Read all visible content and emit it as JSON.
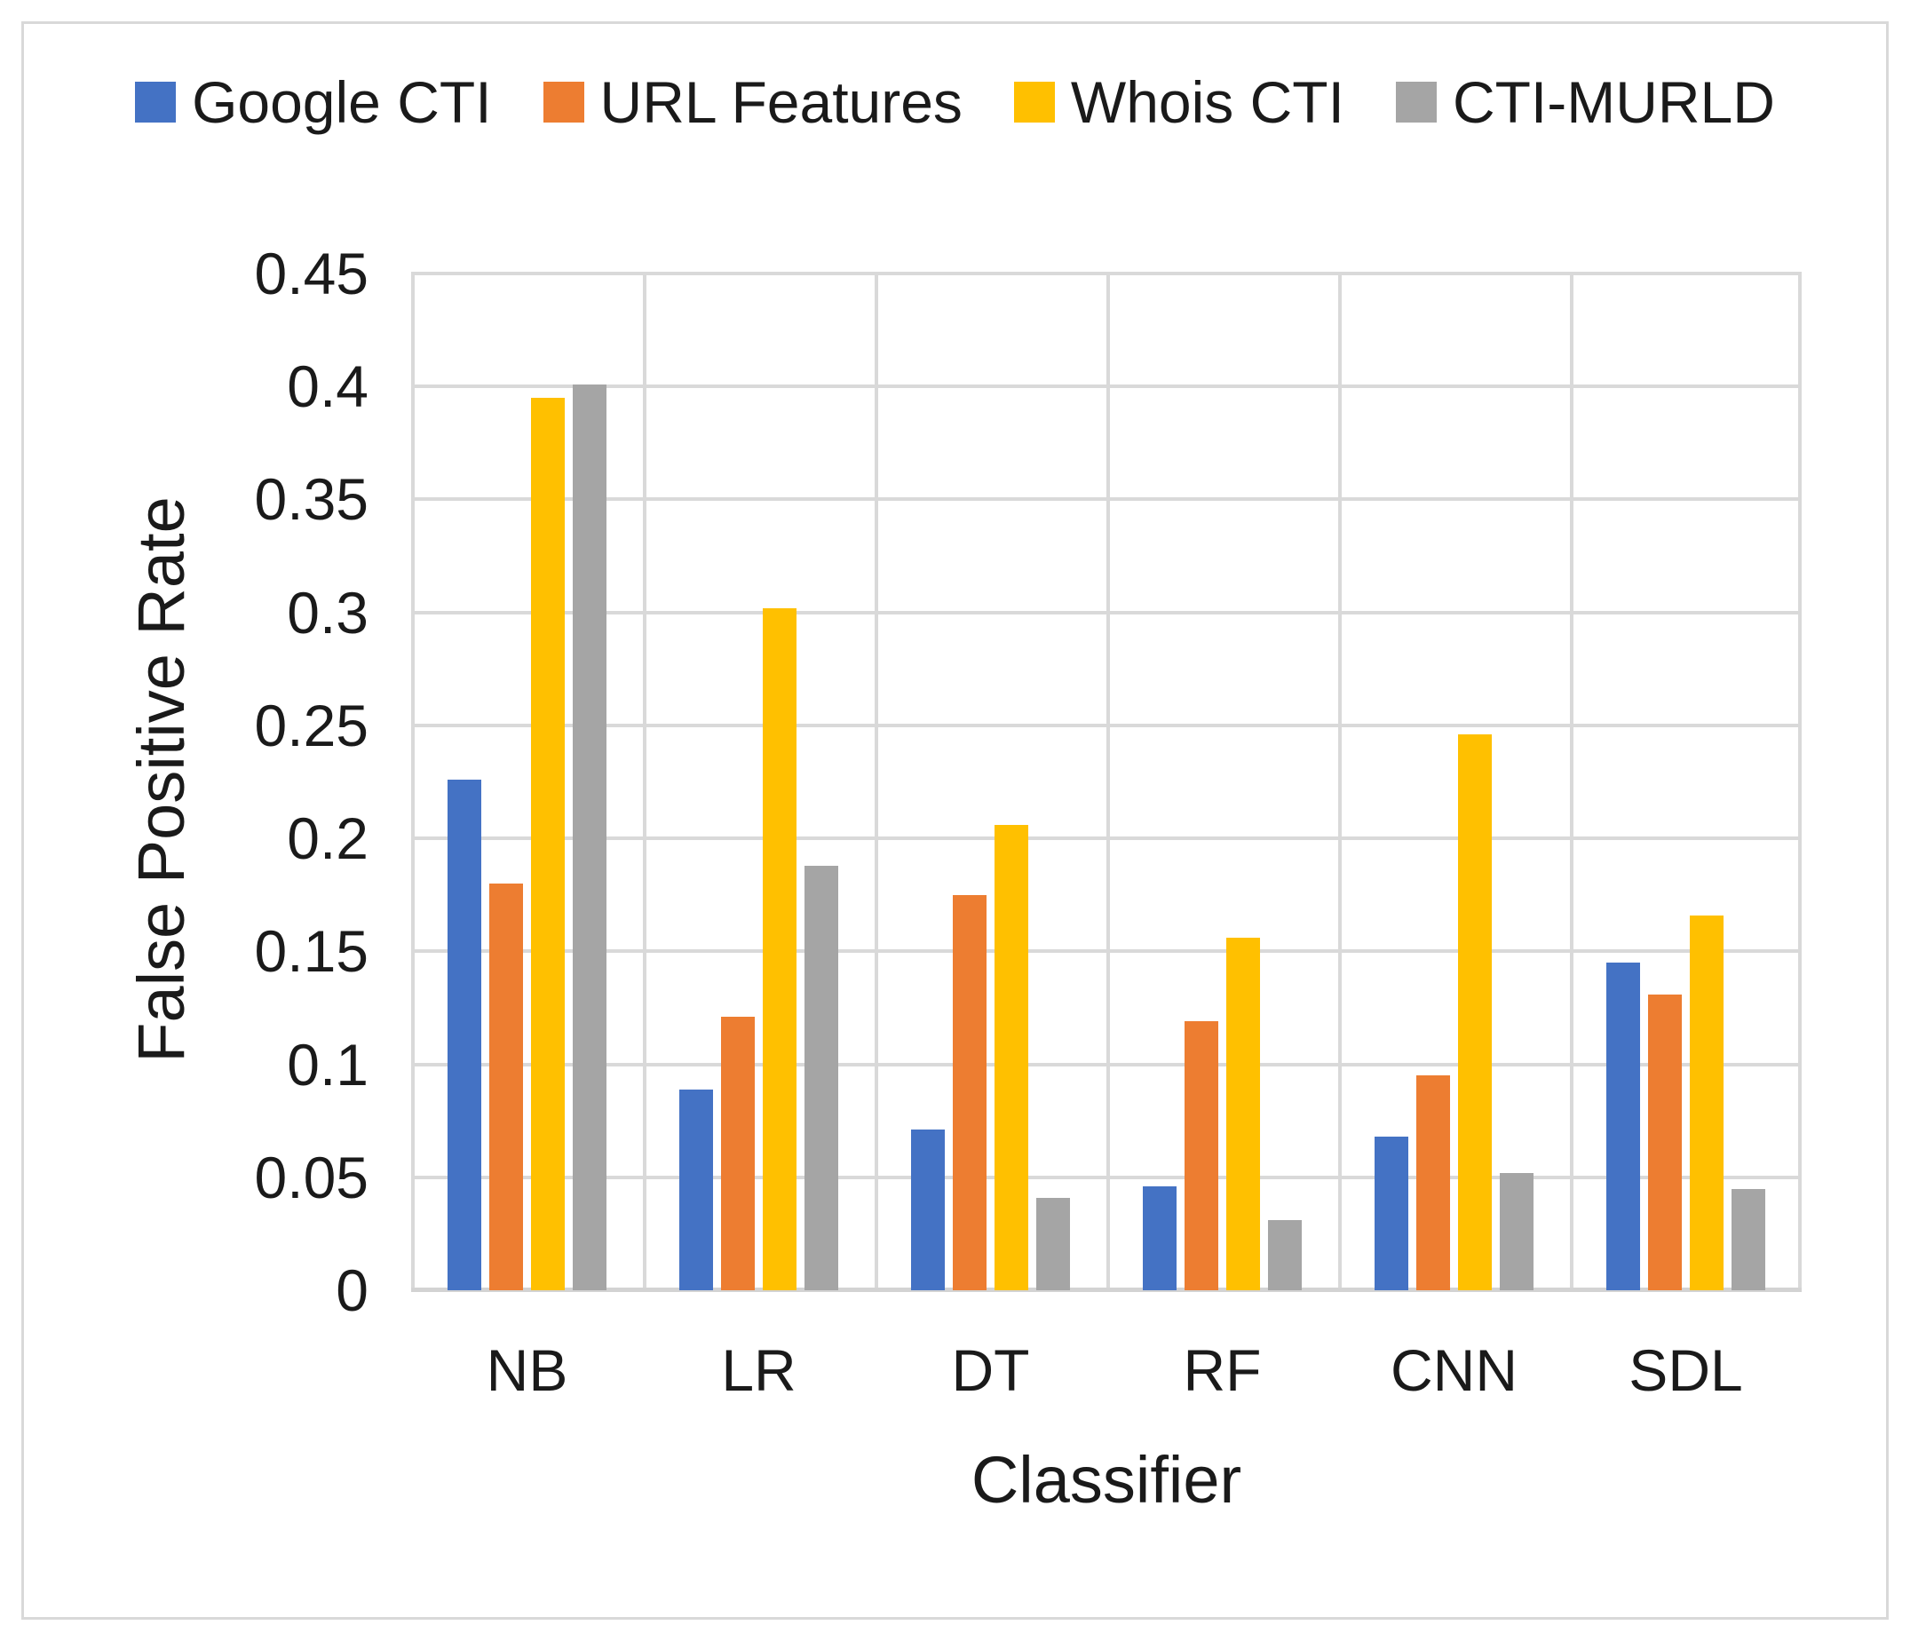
{
  "figure": {
    "background": "#ffffff",
    "border_color": "#d9d9d9",
    "gridline_color": "#d9d9d9",
    "text_color": "#1a1a1a"
  },
  "legend": {
    "position": "top",
    "items": [
      {
        "label": "Google CTI",
        "color": "#4472C4"
      },
      {
        "label": "URL Features",
        "color": "#ED7D31"
      },
      {
        "label": "Whois CTI",
        "color": "#FFC000"
      },
      {
        "label": "CTI-MURLD",
        "color": "#A5A5A5"
      }
    ]
  },
  "axes": {
    "y_tick_labels": [
      "0",
      "0.05",
      "0.1",
      "0.15",
      "0.2",
      "0.25",
      "0.3",
      "0.35",
      "0.4",
      "0.45"
    ],
    "y_tick_values": [
      0,
      0.05,
      0.1,
      0.15,
      0.2,
      0.25,
      0.3,
      0.35,
      0.4,
      0.45
    ]
  },
  "chart_data": {
    "type": "bar",
    "title": "",
    "categories": [
      "NB",
      "LR",
      "DT",
      "RF",
      "CNN",
      "SDL"
    ],
    "series": [
      {
        "name": "Google CTI",
        "color": "#4472C4",
        "values": [
          0.226,
          0.089,
          0.071,
          0.046,
          0.068,
          0.145
        ]
      },
      {
        "name": "URL Features",
        "color": "#ED7D31",
        "values": [
          0.18,
          0.121,
          0.175,
          0.119,
          0.095,
          0.131
        ]
      },
      {
        "name": "Whois CTI",
        "color": "#FFC000",
        "values": [
          0.395,
          0.302,
          0.206,
          0.156,
          0.246,
          0.166
        ]
      },
      {
        "name": "CTI-MURLD",
        "color": "#A5A5A5",
        "values": [
          0.401,
          0.188,
          0.041,
          0.031,
          0.052,
          0.045
        ]
      }
    ],
    "xlabel": "Classifier",
    "ylabel": "False Positive Rate",
    "ylim": [
      0,
      0.45
    ],
    "ytick_step": 0.05,
    "grid": true,
    "legend_position": "top"
  }
}
